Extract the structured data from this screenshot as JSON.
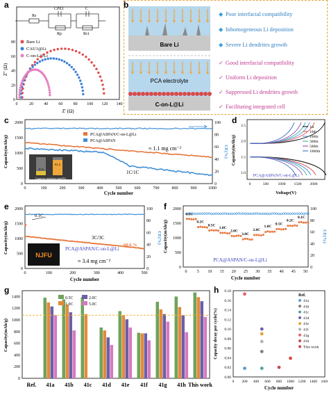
{
  "panels": {
    "a": {
      "label": "a",
      "circuit": [
        "Rs",
        "CPE1",
        "Rp",
        "C",
        "Rct"
      ],
      "legend": [
        "Bare Li",
        "CAU1@Li",
        "C-on-L@Li"
      ],
      "xlabel": "Z' (Ω)",
      "ylabel": "Z'' (Ω)",
      "xticks": [
        "0",
        "20",
        "40",
        "60",
        "80",
        "100",
        "120",
        "140"
      ],
      "yticks": [
        "0",
        "20",
        "40",
        "60",
        "80"
      ]
    },
    "b": {
      "label": "b",
      "top_box_label": "Bare Li",
      "mid_label": "PCA electrolyte",
      "bottom_box_label": "C-on-L@Li",
      "bad_points": [
        "Poor interfacial compatibility",
        "Inhomogeneous Li deposition",
        "Severe Li dendrites growth"
      ],
      "good_points": [
        "Good interfacial compatibility",
        "Uniform Li deposition",
        "Suppressed Li dendrites growth",
        "Facilitating integrated cell"
      ]
    },
    "c": {
      "label": "c",
      "legend": [
        "PCA@ASPAN/C-on-L@Li",
        "PCA@ASPAN"
      ],
      "annotation_rate": "≈ 1.1 mg cm⁻²",
      "annotation_c": "1C/1C",
      "battery_values": [
        "20.6",
        "81.2"
      ],
      "battery_caption": "Capacity retention ratio(%)",
      "xlabel": "Cycle number",
      "ylabel": "Capacity(mAh/g)",
      "y2label": "CE(%)",
      "xticks": [
        "0",
        "100",
        "200",
        "300",
        "400",
        "500",
        "600",
        "700",
        "800",
        "900",
        "1000"
      ],
      "yticks": [
        "0",
        "500",
        "1000",
        "1500",
        "2000"
      ],
      "y2ticks": [
        "0",
        "20",
        "40",
        "60",
        "80",
        "100"
      ]
    },
    "d": {
      "label": "d",
      "legend": [
        "1st",
        "10th",
        "100th",
        "300th",
        "500th",
        "1000th"
      ],
      "caption": "PCA@ASPAN/C-on-L@Li",
      "xlabel": "Voltage(V)",
      "ylabel": "Capacity(mAh/g)",
      "xticks": [
        "0",
        "500",
        "1000",
        "1500",
        "2000"
      ],
      "yticks": [
        "1.0",
        "1.5",
        "2.0",
        "2.5"
      ]
    },
    "e": {
      "label": "e",
      "rate_start": "0.1C",
      "rate_main": "3C/3C",
      "retention": "60.6 %",
      "caption": "PCA@ASPAN/C-on-L@Li",
      "loading": "≈ 3.4 mg cm⁻²",
      "inset_text": "NJFU",
      "xlabel": "Cycle number",
      "ylabel": "Capacity(mAh/g)",
      "y2label": "CE(%)",
      "xticks": [
        "0",
        "100",
        "200",
        "300",
        "400",
        "500"
      ],
      "yticks": [
        "0",
        "500",
        "1000",
        "1500",
        "2000"
      ],
      "y2ticks": [
        "0",
        "20",
        "40",
        "60",
        "80",
        "100"
      ]
    },
    "f": {
      "label": "f",
      "rates": [
        "0.1C",
        "0.2C",
        "0.5C",
        "1.0C",
        "2.0C",
        "3.0C",
        "2.0C",
        "1.0C",
        "0.5C",
        "0.2C",
        "0.1C"
      ],
      "caption": "PCA@ASPAN/C-on-L@Li",
      "xlabel": "Cycle number",
      "ylabel": "Capacity(mAh/g)",
      "y2label": "CE(%)",
      "xticks": [
        "0",
        "5",
        "10",
        "15",
        "20",
        "25",
        "30",
        "35",
        "40",
        "45",
        "50"
      ],
      "yticks": [
        "0",
        "500",
        "1000",
        "1500",
        "2000"
      ],
      "y2ticks": [
        "0",
        "20",
        "40",
        "60",
        "80",
        "100"
      ]
    },
    "g": {
      "label": "g",
      "xlabel": "",
      "ylabel": "Capacity(mAh/g)",
      "yticks": [
        "0",
        "200",
        "400",
        "600",
        "800",
        "1000",
        "1200",
        "1400"
      ]
    },
    "h": {
      "label": "h",
      "xlabel": "Cycle number",
      "ylabel": "Capacity decay per cycle(%)",
      "legend_title": "Ref.",
      "legend": [
        "41a",
        "41b",
        "41c",
        "41d",
        "41e",
        "41f",
        "41g",
        "41h",
        "This work"
      ],
      "xticks": [
        "0",
        "200",
        "400",
        "600",
        "800",
        "1000",
        "1200",
        "1400",
        "1600"
      ],
      "yticks": [
        "0.00",
        "0.02",
        "0.04",
        "0.06",
        "0.08",
        "0.10",
        "0.12",
        "0.14",
        "0.16",
        "0.18"
      ]
    }
  },
  "chart_data": [
    {
      "id": "g",
      "type": "bar",
      "categories": [
        "Ref.",
        "41a",
        "41b",
        "41c",
        "41d",
        "41e",
        "41f",
        "41g",
        "41h",
        "This work"
      ],
      "series": [
        {
          "name": "0.5C",
          "color": "#6fa35a",
          "values": [
            null,
            1380,
            1350,
            1390,
            870,
            1150,
            780,
            1310,
            1400,
            1470
          ]
        },
        {
          "name": "1.0C",
          "color": "#e38a3a",
          "values": [
            null,
            1300,
            1260,
            1100,
            820,
            1080,
            770,
            1180,
            1220,
            1390
          ]
        },
        {
          "name": "2.0C",
          "color": "#6c5fa8",
          "values": [
            null,
            1230,
            1130,
            null,
            700,
            1010,
            770,
            1100,
            1080,
            1320
          ]
        },
        {
          "name": "5.0C",
          "color": "#d679c0",
          "values": [
            null,
            1080,
            820,
            null,
            570,
            870,
            650,
            970,
            790,
            1050
          ]
        }
      ],
      "reference_line": 1080,
      "ylim": [
        0,
        1500
      ],
      "legend_position": "top-left"
    },
    {
      "id": "h",
      "type": "scatter",
      "points": [
        {
          "name": "41a",
          "x": 200,
          "y": 0.018,
          "color": "#5b9bd5"
        },
        {
          "name": "41b",
          "x": 500,
          "y": 0.053,
          "color": "#7f7f7f"
        },
        {
          "name": "41c",
          "x": 500,
          "y": 0.018,
          "color": "#4ea3a3"
        },
        {
          "name": "41d",
          "x": 500,
          "y": 0.1,
          "color": "#6c5fa8"
        },
        {
          "name": "41e",
          "x": 500,
          "y": 0.09,
          "color": "#e3a33a"
        },
        {
          "name": "41f",
          "x": 500,
          "y": 0.074,
          "color": "#b3b3b3"
        },
        {
          "name": "41g",
          "x": 200,
          "y": 0.173,
          "color": "#e06666"
        },
        {
          "name": "41h",
          "x": 800,
          "y": 0.02,
          "color": "#c0504d"
        },
        {
          "name": "This work",
          "x": 1000,
          "y": 0.039,
          "color": "#d04a4a"
        }
      ],
      "xlim": [
        0,
        1600
      ],
      "ylim": [
        0,
        0.18
      ],
      "legend_position": "top-right"
    }
  ]
}
